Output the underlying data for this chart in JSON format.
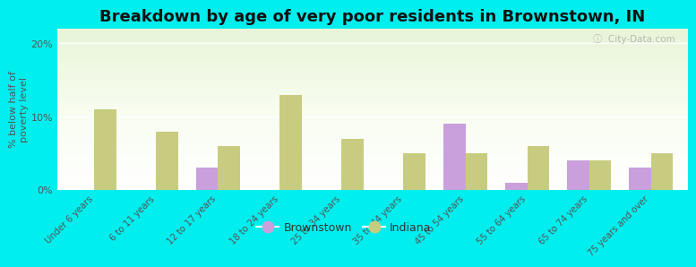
{
  "categories": [
    "Under 6 years",
    "6 to 11 years",
    "12 to 17 years",
    "18 to 24 years",
    "25 to 34 years",
    "35 to 44 years",
    "45 to 54 years",
    "55 to 64 years",
    "65 to 74 years",
    "75 years and over"
  ],
  "brownstown": [
    0,
    0,
    3.0,
    0,
    0,
    0,
    9.0,
    1.0,
    4.0,
    3.0
  ],
  "indiana": [
    11.0,
    8.0,
    6.0,
    13.0,
    7.0,
    5.0,
    5.0,
    6.0,
    4.0,
    5.0
  ],
  "brownstown_color": "#c9a0dc",
  "indiana_color": "#c8cc80",
  "title": "Breakdown by age of very poor residents in Brownstown, IN",
  "ylabel": "% below half of\npoverty level",
  "ylim": [
    0,
    22
  ],
  "yticks": [
    0,
    10,
    20
  ],
  "ytick_labels": [
    "0%",
    "10%",
    "20%"
  ],
  "background_color": "#00eeee",
  "bar_width": 0.35,
  "title_fontsize": 13,
  "label_fontsize": 8,
  "legend_brownstown": "Brownstown",
  "legend_indiana": "Indiana",
  "watermark": "City-Data.com"
}
